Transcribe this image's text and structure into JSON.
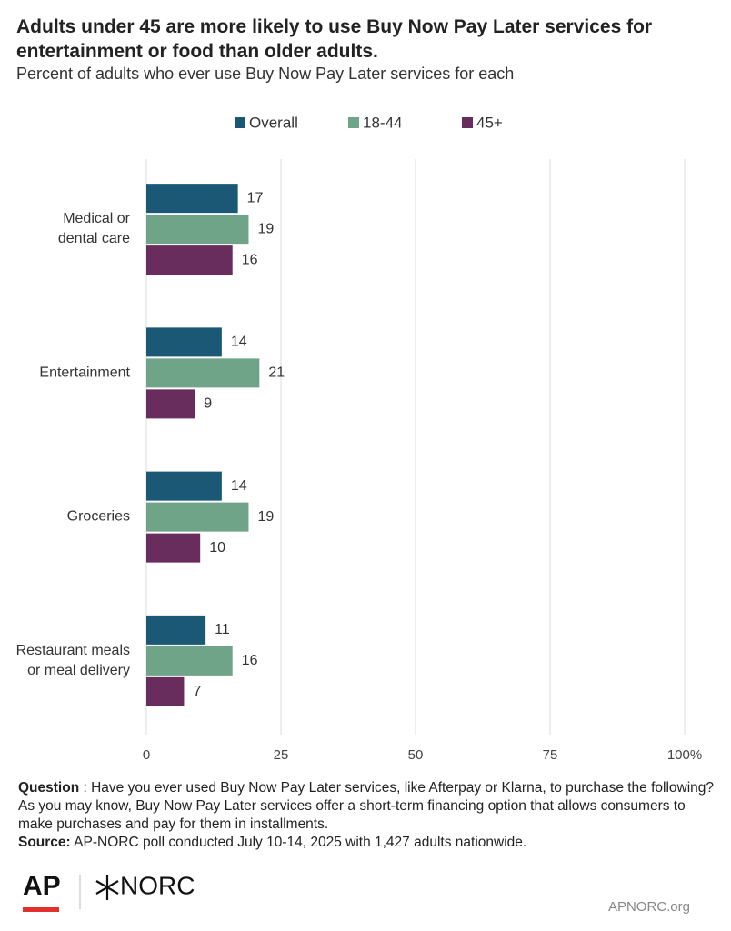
{
  "chart_data": {
    "type": "bar",
    "orientation": "horizontal",
    "title": "Adults under 45 are more likely to use Buy Now Pay Later services for entertainment or food than older adults.",
    "subtitle": "Percent of adults who ever use Buy Now Pay Later services for each",
    "categories": [
      "Medical or dental care",
      "Entertainment",
      "Groceries",
      "Restaurant meals or meal delivery"
    ],
    "series": [
      {
        "name": "Overall",
        "color": "#1b5876",
        "values": [
          17,
          14,
          14,
          11
        ]
      },
      {
        "name": "18-44",
        "color": "#6fa489",
        "values": [
          19,
          21,
          19,
          16
        ]
      },
      {
        "name": "45+",
        "color": "#692d5d",
        "values": [
          16,
          9,
          10,
          7
        ]
      }
    ],
    "xlim": [
      0,
      100
    ],
    "xticks": [
      0,
      25,
      50,
      75,
      {
        "value": 100,
        "label": "100%"
      }
    ],
    "grid": true,
    "legend": "top"
  },
  "footer": {
    "question": {
      "label": "Question",
      "text": " : Have you ever used Buy Now Pay Later services, like Afterpay or Klarna, to purchase the following? As you may know, Buy Now Pay Later services offer a short-term financing option that allows consumers to make purchases and pay for them in installments."
    },
    "source": {
      "label": "Source:",
      "text": " AP-NORC poll conducted July 10-14, 2025 with 1,427 adults nationwide."
    },
    "logos": [
      "AP",
      "NORC"
    ],
    "url": "APNORC.org"
  }
}
